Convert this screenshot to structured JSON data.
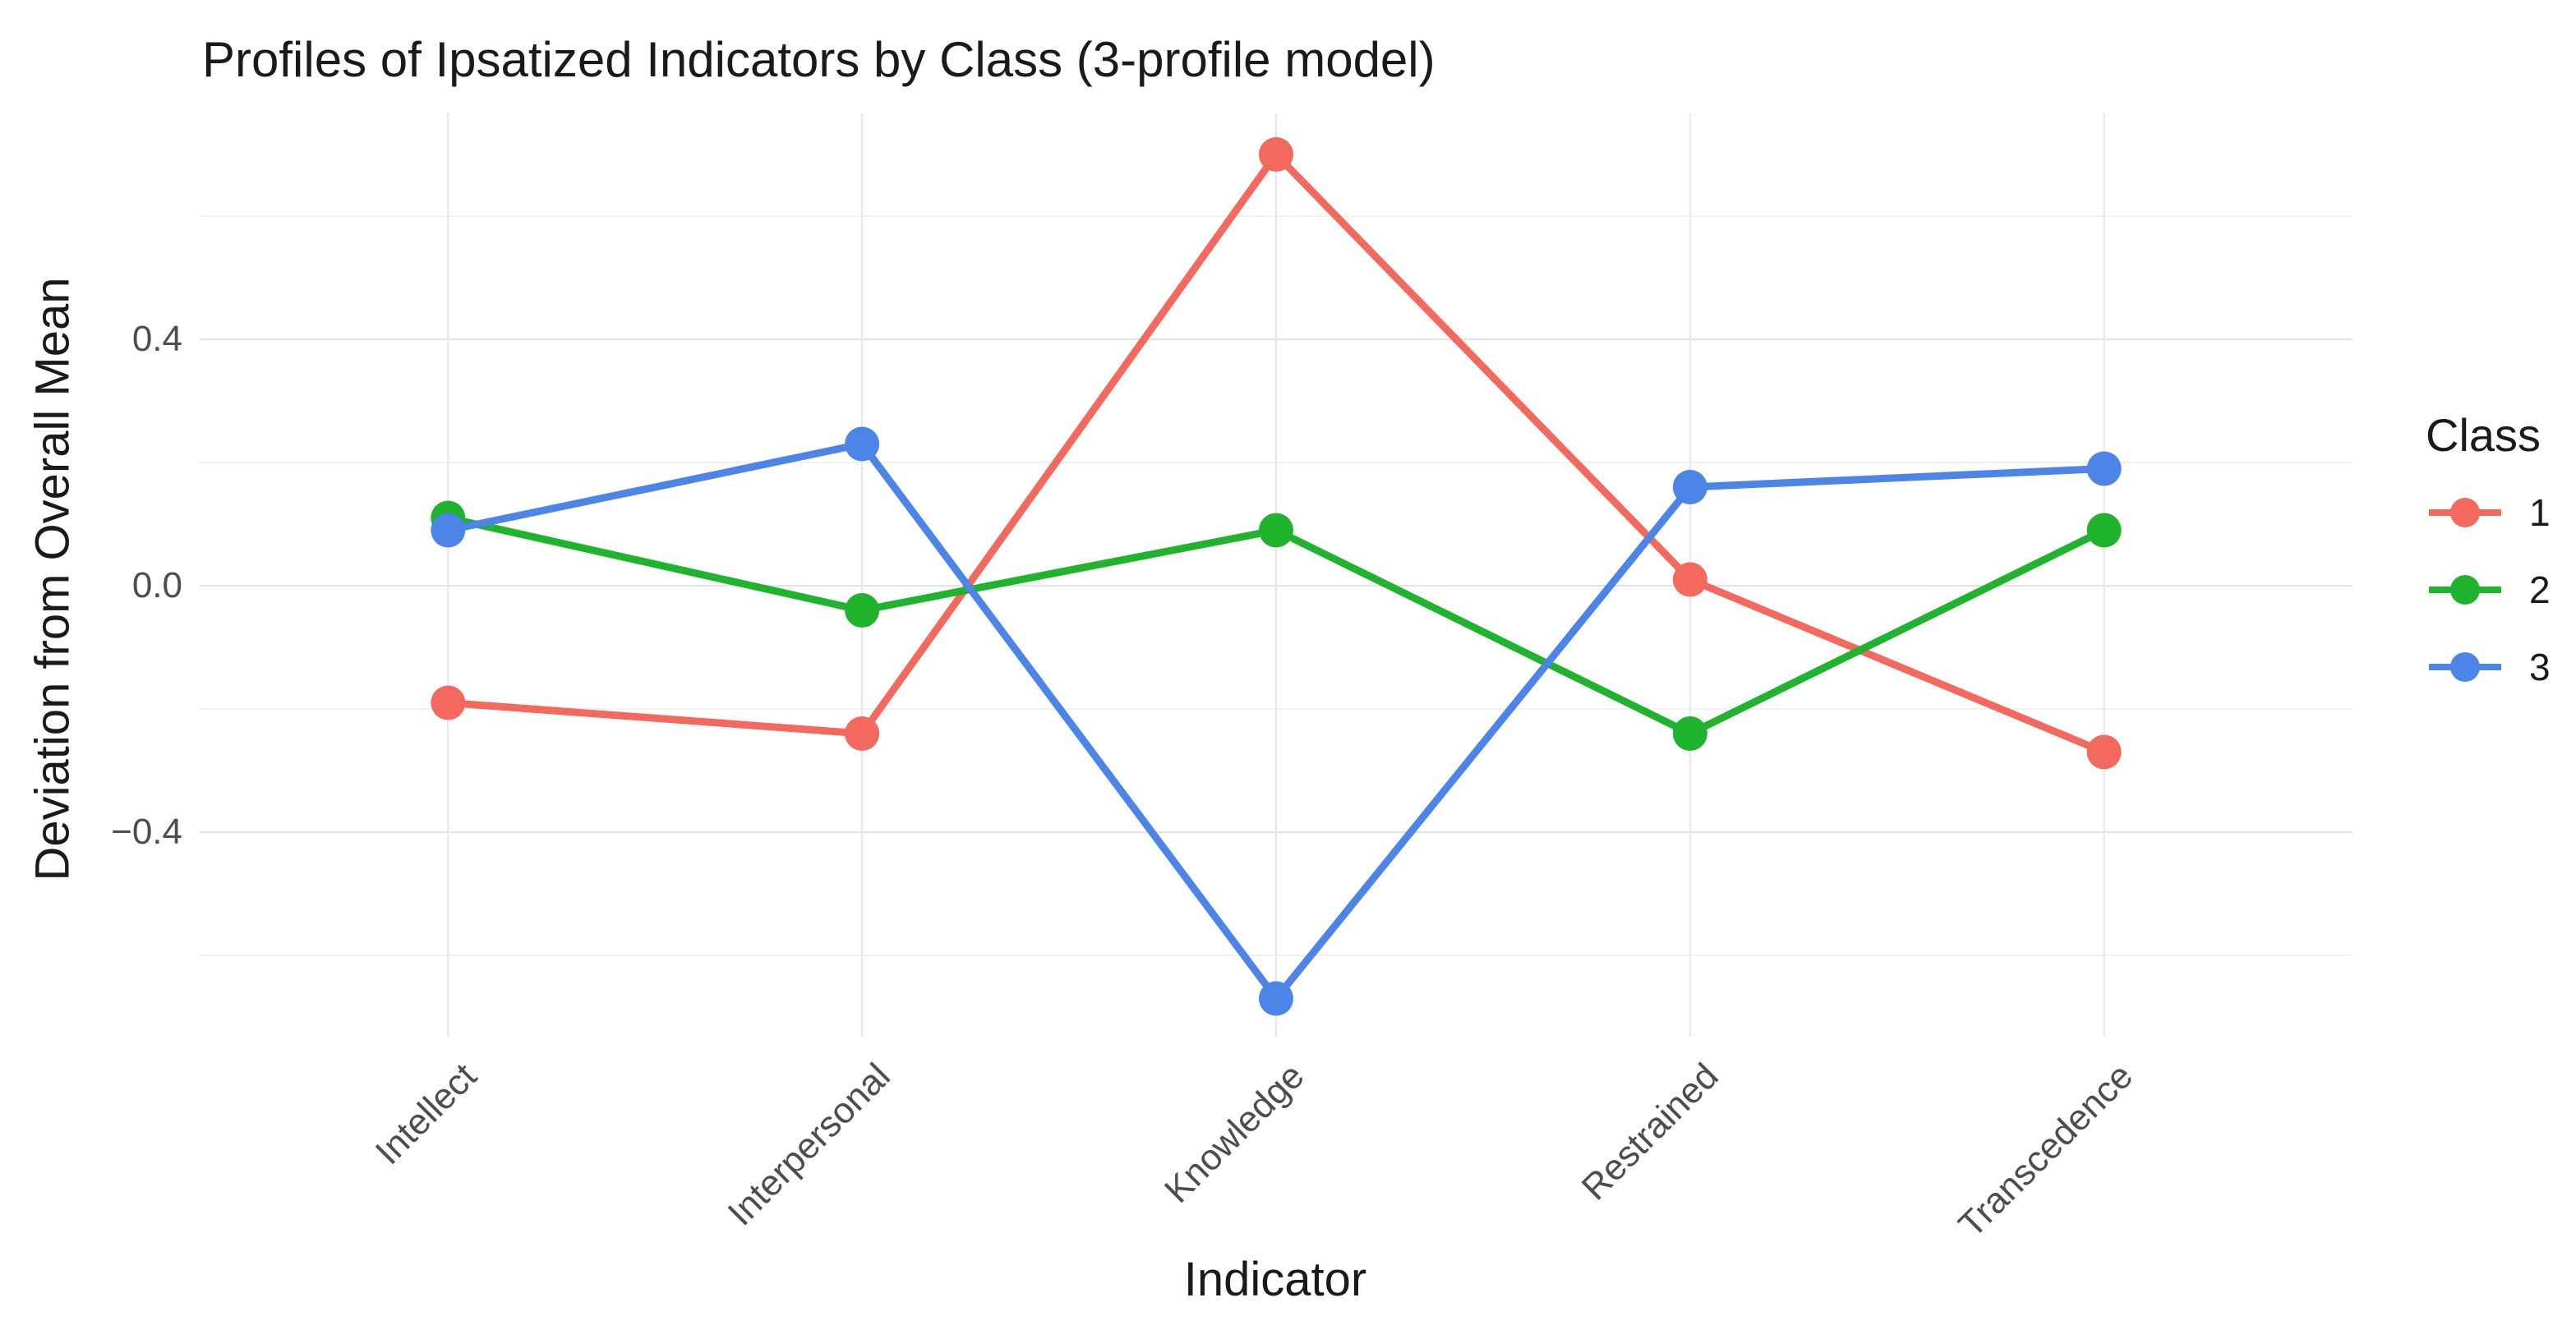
{
  "chart_data": {
    "type": "line",
    "title": "Profiles of Ipsatized Indicators by Class (3-profile model)",
    "xlabel": "Indicator",
    "ylabel": "Deviation from Overall Mean",
    "categories": [
      "Intellect",
      "Interpersonal",
      "Knowledge",
      "Restrained",
      "Transcedence"
    ],
    "series": [
      {
        "name": "1",
        "color": "#F4695E",
        "values": [
          -0.19,
          -0.24,
          0.7,
          0.01,
          -0.27
        ]
      },
      {
        "name": "2",
        "color": "#1FB32E",
        "values": [
          0.11,
          -0.04,
          0.09,
          -0.24,
          0.09
        ]
      },
      {
        "name": "3",
        "color": "#4C84E8",
        "values": [
          0.09,
          0.23,
          -0.67,
          0.16,
          0.19
        ]
      }
    ],
    "yticks": [
      {
        "value": 0.4,
        "label": "0.4"
      },
      {
        "value": 0.0,
        "label": "0.0"
      },
      {
        "value": -0.4,
        "label": "−0.4"
      }
    ],
    "y_minor_gridlines": [
      0.6,
      0.2,
      -0.2,
      -0.6
    ],
    "ylim": [
      -0.73,
      0.77
    ],
    "grid": true,
    "legend": {
      "title": "Class",
      "position": "right",
      "entries": [
        "1",
        "2",
        "3"
      ]
    }
  }
}
